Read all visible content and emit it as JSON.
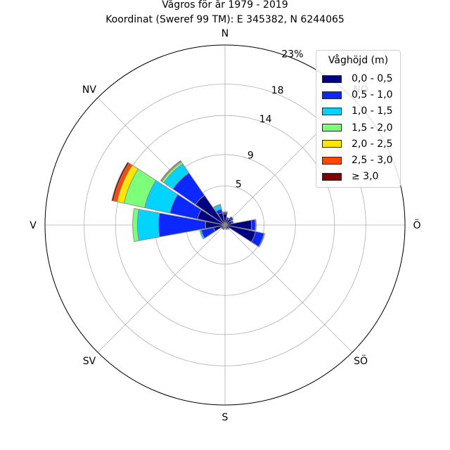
{
  "title_line1": "Vågros för år 1979 - 2019",
  "title_line2": "Koordinat (Sweref 99 TM): E 345382, N 6244065",
  "chart_data": {
    "type": "polar-stacked-bar",
    "directions": [
      "N",
      "NNÖ",
      "NÖ",
      "ÖNÖ",
      "Ö",
      "ÖSÖ",
      "SÖ",
      "SSÖ",
      "S",
      "SSV",
      "SV",
      "VSV",
      "V",
      "VNV",
      "NV",
      "NNV"
    ],
    "direction_tick_labels": [
      "N",
      "NÖ",
      "Ö",
      "SÖ",
      "S",
      "SV",
      "V",
      "NV"
    ],
    "radial_ticks": [
      5,
      9,
      14,
      18,
      23
    ],
    "radial_tick_labels": [
      "5",
      "9",
      "14",
      "18",
      "23%"
    ],
    "r_max": 23,
    "legend_title": "Våghöjd (m)",
    "legend_position": "top-right",
    "grid": true,
    "series": [
      {
        "name": "0,0 - 0,5",
        "color": "#000080",
        "values": [
          1.4,
          0.8,
          1.0,
          0.9,
          3.4,
          4.0,
          0.6,
          0.5,
          0.3,
          0.4,
          0.4,
          1.5,
          2.5,
          3.6,
          4.6,
          1.6
        ]
      },
      {
        "name": "0,5 - 1,0",
        "color": "#0a28ff",
        "values": [
          0.2,
          0.2,
          0.3,
          0.2,
          0.5,
          1.1,
          0.1,
          0.1,
          0.1,
          0.2,
          0.2,
          1.6,
          6.0,
          3.6,
          3.5,
          0.5
        ]
      },
      {
        "name": "1,0 - 1,5",
        "color": "#00d4ff",
        "values": [
          0.1,
          0.0,
          0.0,
          0.0,
          0.1,
          0.1,
          0.0,
          0.0,
          0.0,
          0.0,
          0.0,
          0.2,
          2.7,
          3.3,
          1.4,
          0.5
        ]
      },
      {
        "name": "1,5 - 2,0",
        "color": "#7dff7a",
        "values": [
          0.0,
          0.0,
          0.0,
          0.0,
          0.0,
          0.0,
          0.0,
          0.0,
          0.0,
          0.0,
          0.0,
          0.0,
          0.6,
          2.7,
          0.3,
          0.1
        ]
      },
      {
        "name": "2,0 - 2,5",
        "color": "#ffe600",
        "values": [
          0.0,
          0.0,
          0.0,
          0.0,
          0.0,
          0.0,
          0.0,
          0.0,
          0.0,
          0.0,
          0.0,
          0.0,
          0.0,
          0.9,
          0.1,
          0.0
        ]
      },
      {
        "name": "2,5 - 3,0",
        "color": "#ff4a00",
        "values": [
          0.0,
          0.0,
          0.0,
          0.0,
          0.0,
          0.0,
          0.0,
          0.0,
          0.0,
          0.0,
          0.0,
          0.0,
          0.0,
          0.5,
          0.1,
          0.0
        ]
      },
      {
        "name": "≥ 3,0",
        "color": "#800000",
        "values": [
          0.0,
          0.0,
          0.0,
          0.0,
          0.0,
          0.0,
          0.0,
          0.0,
          0.0,
          0.0,
          0.0,
          0.0,
          0.0,
          0.2,
          0.0,
          0.0
        ]
      }
    ]
  }
}
